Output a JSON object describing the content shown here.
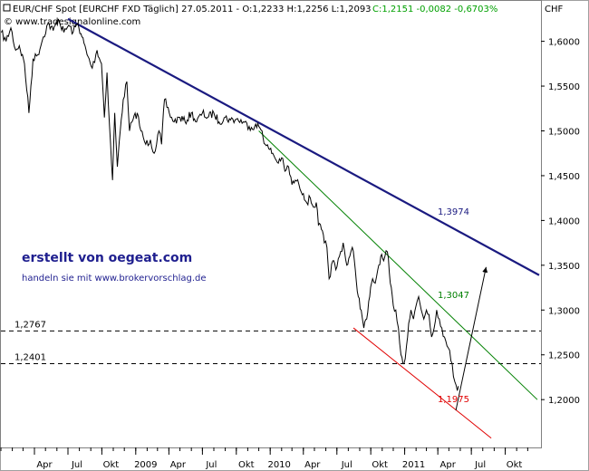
{
  "header": {
    "symbol": "EUR/CHF Spot [EURCHF FXD  Täglich] 27.05.2011 - O:1,2233 H:1,2256 L:1,2093",
    "change": "C:1,2151  -0,0082  -0,6703%",
    "change_color": "#00a000",
    "watermark": "© www.tradesignalonline.com"
  },
  "credit": {
    "main": "erstellt von oegeat.com",
    "sub": "handeln sie mit www.brokervorschlag.de"
  },
  "chart_data": {
    "type": "line",
    "title": "EUR/CHF Spot [EURCHF FXD  Täglich] 27.05.2011",
    "ylabel": "CHF",
    "xlabel": "",
    "ylim": [
      1.15,
      1.64
    ],
    "x_ticks": [
      "Apr",
      "Jul",
      "Okt",
      "2009",
      "Apr",
      "Jul",
      "Okt",
      "2010",
      "Apr",
      "Jul",
      "Okt",
      "2011",
      "Apr",
      "Jul",
      "Okt"
    ],
    "x_tick_dates": [
      "2008-04-01",
      "2008-07-01",
      "2008-10-01",
      "2009-01-01",
      "2009-04-01",
      "2009-07-01",
      "2009-10-01",
      "2010-01-01",
      "2010-04-01",
      "2010-07-01",
      "2010-10-01",
      "2011-01-01",
      "2011-04-01",
      "2011-07-01",
      "2011-10-01"
    ],
    "y_ticks": [
      "1,2000",
      "1,2500",
      "1,3000",
      "1,3500",
      "1,4000",
      "1,4500",
      "1,5000",
      "1,5500",
      "1,6000"
    ],
    "y_tick_values": [
      1.2,
      1.25,
      1.3,
      1.35,
      1.4,
      1.45,
      1.5,
      1.55,
      1.6
    ],
    "grid": false,
    "series": [
      {
        "role": "price",
        "color": "#000000",
        "points": [
          [
            "2008-01-02",
            1.61
          ],
          [
            "2008-01-15",
            1.6
          ],
          [
            "2008-01-28",
            1.615
          ],
          [
            "2008-02-10",
            1.59
          ],
          [
            "2008-02-20",
            1.595
          ],
          [
            "2008-03-05",
            1.575
          ],
          [
            "2008-03-17",
            1.52
          ],
          [
            "2008-03-28",
            1.58
          ],
          [
            "2008-04-10",
            1.585
          ],
          [
            "2008-04-25",
            1.605
          ],
          [
            "2008-05-08",
            1.62
          ],
          [
            "2008-05-22",
            1.612
          ],
          [
            "2008-06-05",
            1.625
          ],
          [
            "2008-06-20",
            1.61
          ],
          [
            "2008-07-03",
            1.618
          ],
          [
            "2008-07-15",
            1.61
          ],
          [
            "2008-07-28",
            1.62
          ],
          [
            "2008-08-08",
            1.605
          ],
          [
            "2008-08-22",
            1.585
          ],
          [
            "2008-09-05",
            1.57
          ],
          [
            "2008-09-18",
            1.59
          ],
          [
            "2008-09-30",
            1.575
          ],
          [
            "2008-10-08",
            1.515
          ],
          [
            "2008-10-15",
            1.565
          ],
          [
            "2008-10-22",
            1.505
          ],
          [
            "2008-10-30",
            1.445
          ],
          [
            "2008-11-05",
            1.52
          ],
          [
            "2008-11-12",
            1.46
          ],
          [
            "2008-11-20",
            1.5
          ],
          [
            "2008-11-28",
            1.535
          ],
          [
            "2008-12-08",
            1.555
          ],
          [
            "2008-12-15",
            1.5
          ],
          [
            "2008-12-22",
            1.51
          ],
          [
            "2009-01-05",
            1.52
          ],
          [
            "2009-01-15",
            1.5
          ],
          [
            "2009-01-28",
            1.485
          ],
          [
            "2009-02-10",
            1.49
          ],
          [
            "2009-02-20",
            1.475
          ],
          [
            "2009-03-05",
            1.5
          ],
          [
            "2009-03-12",
            1.485
          ],
          [
            "2009-03-20",
            1.535
          ],
          [
            "2009-04-02",
            1.52
          ],
          [
            "2009-04-15",
            1.51
          ],
          [
            "2009-05-01",
            1.515
          ],
          [
            "2009-05-15",
            1.51
          ],
          [
            "2009-06-01",
            1.52
          ],
          [
            "2009-06-15",
            1.51
          ],
          [
            "2009-07-01",
            1.52
          ],
          [
            "2009-07-15",
            1.515
          ],
          [
            "2009-08-01",
            1.52
          ],
          [
            "2009-08-15",
            1.51
          ],
          [
            "2009-09-01",
            1.515
          ],
          [
            "2009-09-15",
            1.512
          ],
          [
            "2009-10-01",
            1.513
          ],
          [
            "2009-10-20",
            1.51
          ],
          [
            "2009-11-05",
            1.505
          ],
          [
            "2009-11-20",
            1.505
          ],
          [
            "2009-12-01",
            1.505
          ],
          [
            "2009-12-10",
            1.5
          ],
          [
            "2009-12-18",
            1.485
          ],
          [
            "2009-12-28",
            1.48
          ],
          [
            "2010-01-08",
            1.475
          ],
          [
            "2010-01-20",
            1.465
          ],
          [
            "2010-02-01",
            1.47
          ],
          [
            "2010-02-10",
            1.455
          ],
          [
            "2010-02-20",
            1.46
          ],
          [
            "2010-03-01",
            1.44
          ],
          [
            "2010-03-10",
            1.445
          ],
          [
            "2010-03-20",
            1.44
          ],
          [
            "2010-04-01",
            1.43
          ],
          [
            "2010-04-10",
            1.42
          ],
          [
            "2010-04-20",
            1.425
          ],
          [
            "2010-04-28",
            1.415
          ],
          [
            "2010-05-06",
            1.42
          ],
          [
            "2010-05-12",
            1.395
          ],
          [
            "2010-05-20",
            1.39
          ],
          [
            "2010-05-28",
            1.375
          ],
          [
            "2010-06-04",
            1.37
          ],
          [
            "2010-06-10",
            1.335
          ],
          [
            "2010-06-20",
            1.355
          ],
          [
            "2010-06-28",
            1.345
          ],
          [
            "2010-07-08",
            1.36
          ],
          [
            "2010-07-18",
            1.375
          ],
          [
            "2010-07-28",
            1.35
          ],
          [
            "2010-08-05",
            1.36
          ],
          [
            "2010-08-12",
            1.37
          ],
          [
            "2010-08-20",
            1.345
          ],
          [
            "2010-08-28",
            1.315
          ],
          [
            "2010-09-05",
            1.3
          ],
          [
            "2010-09-12",
            1.28
          ],
          [
            "2010-09-20",
            1.29
          ],
          [
            "2010-09-28",
            1.315
          ],
          [
            "2010-10-06",
            1.335
          ],
          [
            "2010-10-13",
            1.33
          ],
          [
            "2010-10-20",
            1.345
          ],
          [
            "2010-10-28",
            1.36
          ],
          [
            "2010-11-05",
            1.355
          ],
          [
            "2010-11-15",
            1.365
          ],
          [
            "2010-11-23",
            1.33
          ],
          [
            "2010-12-01",
            1.305
          ],
          [
            "2010-12-08",
            1.3
          ],
          [
            "2010-12-15",
            1.28
          ],
          [
            "2010-12-22",
            1.25
          ],
          [
            "2010-12-30",
            1.24
          ],
          [
            "2011-01-06",
            1.26
          ],
          [
            "2011-01-12",
            1.285
          ],
          [
            "2011-01-18",
            1.3
          ],
          [
            "2011-01-25",
            1.29
          ],
          [
            "2011-02-01",
            1.305
          ],
          [
            "2011-02-08",
            1.315
          ],
          [
            "2011-02-15",
            1.3
          ],
          [
            "2011-02-22",
            1.29
          ],
          [
            "2011-03-01",
            1.3
          ],
          [
            "2011-03-08",
            1.295
          ],
          [
            "2011-03-15",
            1.27
          ],
          [
            "2011-03-22",
            1.28
          ],
          [
            "2011-03-29",
            1.3
          ],
          [
            "2011-04-05",
            1.29
          ],
          [
            "2011-04-12",
            1.28
          ],
          [
            "2011-04-19",
            1.27
          ],
          [
            "2011-04-26",
            1.26
          ],
          [
            "2011-05-03",
            1.255
          ],
          [
            "2011-05-10",
            1.24
          ],
          [
            "2011-05-17",
            1.22
          ],
          [
            "2011-05-24",
            1.21
          ],
          [
            "2011-05-27",
            1.2151
          ]
        ]
      }
    ],
    "trendlines": [
      {
        "name": "",
        "label": "1,3974",
        "color": "#1a1a80",
        "width": 2.2,
        "from": [
          "2008-07-01",
          1.625
        ],
        "to": [
          "2012-01-01",
          1.339
        ]
      },
      {
        "name": "",
        "label": "1,3047",
        "color": "#008000",
        "width": 1,
        "from": [
          "2009-12-01",
          1.5
        ],
        "to": [
          "2011-12-27",
          1.2
        ]
      },
      {
        "name": "",
        "label": "1,1975",
        "color": "#e00000",
        "width": 1,
        "from": [
          "2010-08-15",
          1.28
        ],
        "to": [
          "2011-08-24",
          1.157
        ]
      }
    ],
    "levels": [
      {
        "label": "1,2767",
        "value": 1.2767
      },
      {
        "label": "1,2401",
        "value": 1.2401
      }
    ],
    "arrow": {
      "color": "#000000",
      "from": [
        "2011-05-20",
        1.188
      ],
      "to": [
        "2011-08-10",
        1.348
      ]
    }
  }
}
